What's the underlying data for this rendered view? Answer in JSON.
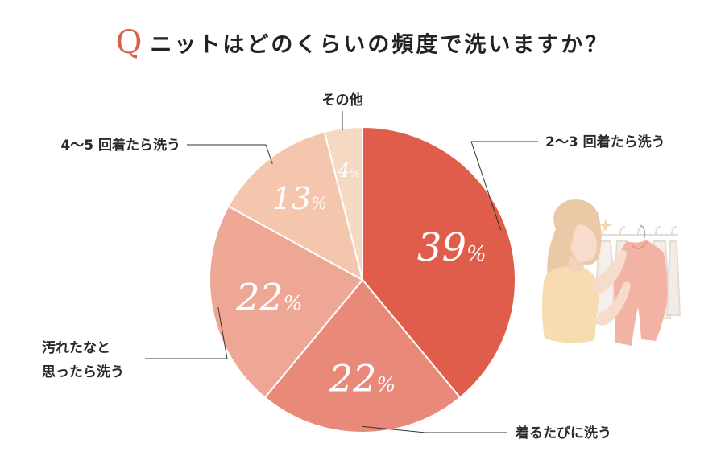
{
  "title": {
    "q_mark": "Q",
    "text": "ニットはどのくらいの頻度で洗いますか？"
  },
  "colors": {
    "accent": "#d9614c",
    "slices": [
      "#e05c4b",
      "#e9897a",
      "#eea795",
      "#f3c6ad",
      "#f5d9c3"
    ],
    "leader": "#333333"
  },
  "chart_data": {
    "type": "pie",
    "start_angle_deg": 0,
    "direction": "clockwise",
    "slices": [
      {
        "label": "2〜3 回着たら洗う",
        "value": 39,
        "display": "39",
        "unit": "%"
      },
      {
        "label": "着るたびに洗う",
        "value": 22,
        "display": "22",
        "unit": "%"
      },
      {
        "label_lines": [
          "汚れたなと",
          "思ったら洗う"
        ],
        "value": 22,
        "display": "22",
        "unit": "%"
      },
      {
        "label": "4〜5 回着たら洗う",
        "value": 13,
        "display": "13",
        "unit": "%"
      },
      {
        "label": "その他",
        "value": 4,
        "display": "4",
        "unit": "%"
      }
    ]
  },
  "illustration": {
    "name": "woman-holding-sweater-illustration"
  }
}
